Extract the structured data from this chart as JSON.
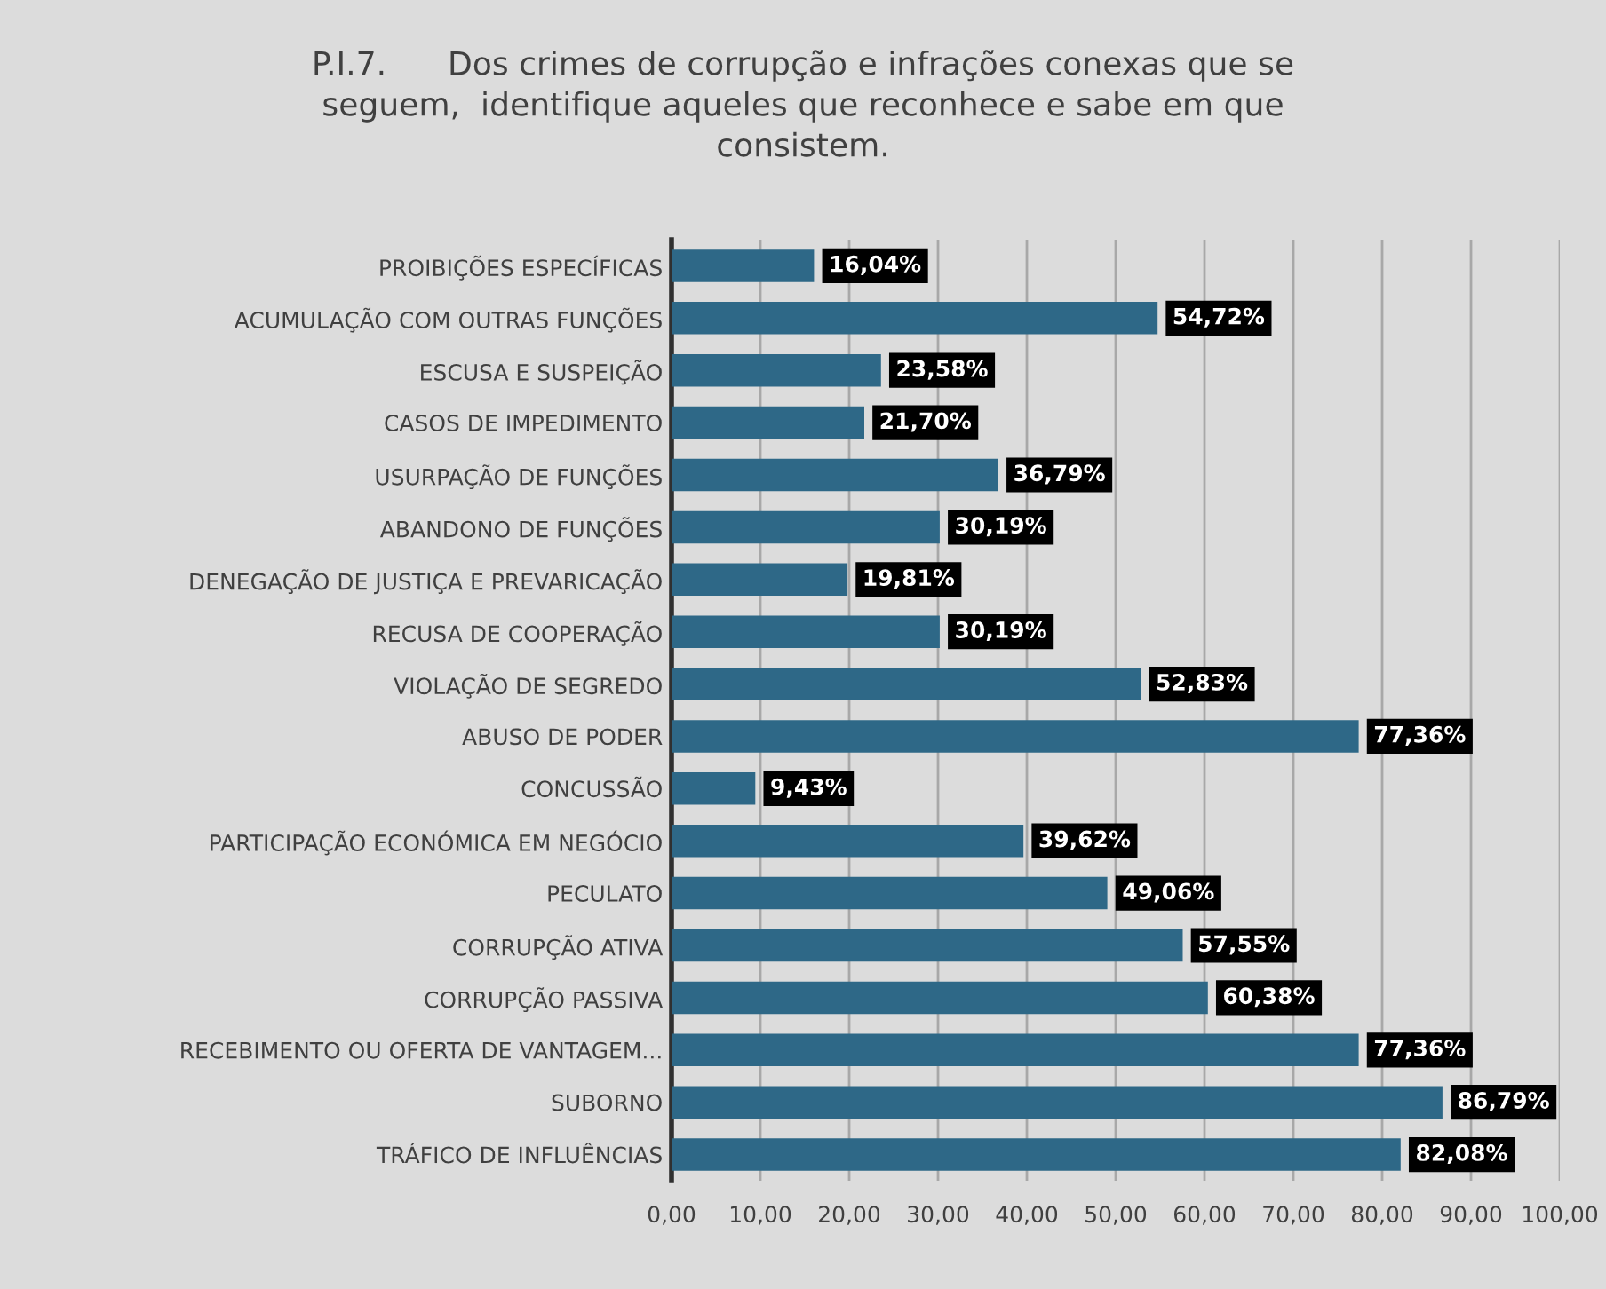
{
  "chart_data": {
    "type": "bar",
    "orientation": "horizontal",
    "title": "P.I.7.      Dos crimes de corrupção e infrações conexas que se\nseguem,  identifique aqueles que reconhece e sabe em que\nconsistem.",
    "categories": [
      "PROIBIÇÕES ESPECÍFICAS",
      "ACUMULAÇÃO COM OUTRAS FUNÇÕES",
      "ESCUSA E SUSPEIÇÃO",
      "CASOS DE IMPEDIMENTO",
      "USURPAÇÃO DE FUNÇÕES",
      "ABANDONO DE FUNÇÕES",
      "DENEGAÇÃO DE JUSTIÇA E PREVARICAÇÃO",
      "RECUSA DE COOPERAÇÃO",
      "VIOLAÇÃO DE SEGREDO",
      "ABUSO DE PODER",
      "CONCUSSÃO",
      "PARTICIPAÇÃO ECONÓMICA EM NEGÓCIO",
      "PECULATO",
      "CORRUPÇÃO ATIVA",
      "CORRUPÇÃO PASSIVA",
      "RECEBIMENTO OU OFERTA DE VANTAGEM...",
      "SUBORNO",
      "TRÁFICO DE INFLUÊNCIAS"
    ],
    "values": [
      16.04,
      54.72,
      23.58,
      21.7,
      36.79,
      30.19,
      19.81,
      30.19,
      52.83,
      77.36,
      9.43,
      39.62,
      49.06,
      57.55,
      60.38,
      77.36,
      86.79,
      82.08
    ],
    "value_labels": [
      "16,04%",
      "54,72%",
      "23,58%",
      "21,70%",
      "36,79%",
      "30,19%",
      "19,81%",
      "30,19%",
      "52,83%",
      "77,36%",
      "9,43%",
      "39,62%",
      "49,06%",
      "57,55%",
      "60,38%",
      "77,36%",
      "86,79%",
      "82,08%"
    ],
    "color": "#2e6887",
    "xlim": [
      0,
      100
    ],
    "xticks": [
      {
        "value": 0,
        "label": "0,00"
      },
      {
        "value": 10,
        "label": "10,00"
      },
      {
        "value": 20,
        "label": "20,00"
      },
      {
        "value": 30,
        "label": "30,00"
      },
      {
        "value": 40,
        "label": "40,00"
      },
      {
        "value": 50,
        "label": "50,00"
      },
      {
        "value": 60,
        "label": "60,00"
      },
      {
        "value": 70,
        "label": "70,00"
      },
      {
        "value": 80,
        "label": "80,00"
      },
      {
        "value": 90,
        "label": "90,00"
      },
      {
        "value": 100,
        "label": "100,00"
      }
    ],
    "grid": "x"
  }
}
